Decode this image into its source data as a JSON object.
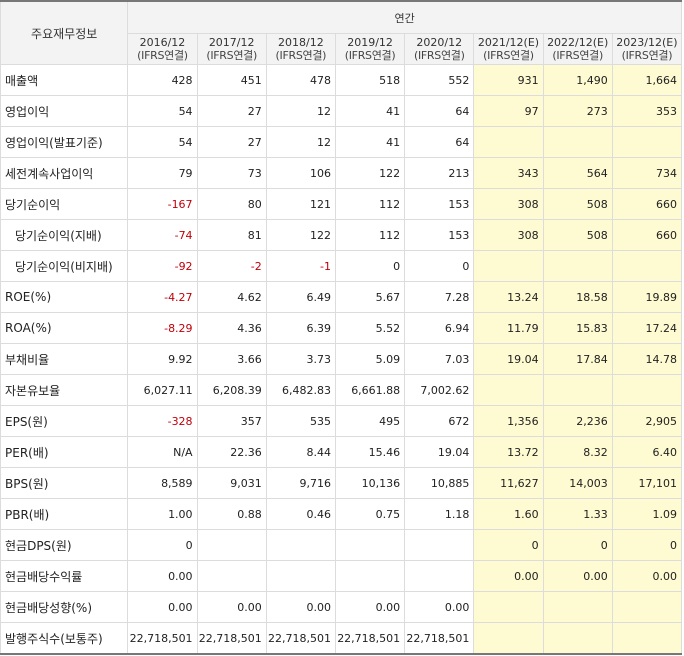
{
  "header": {
    "label_col": "주요재무정보",
    "group": "연간",
    "periods": [
      {
        "year": "2016/12",
        "basis": "(IFRS연결)",
        "estimate": false
      },
      {
        "year": "2017/12",
        "basis": "(IFRS연결)",
        "estimate": false
      },
      {
        "year": "2018/12",
        "basis": "(IFRS연결)",
        "estimate": false
      },
      {
        "year": "2019/12",
        "basis": "(IFRS연결)",
        "estimate": false
      },
      {
        "year": "2020/12",
        "basis": "(IFRS연결)",
        "estimate": false
      },
      {
        "year": "2021/12(E)",
        "basis": "(IFRS연결)",
        "estimate": true
      },
      {
        "year": "2022/12(E)",
        "basis": "(IFRS연결)",
        "estimate": true
      },
      {
        "year": "2023/12(E)",
        "basis": "(IFRS연결)",
        "estimate": true
      }
    ]
  },
  "rows": [
    {
      "label": "매출액",
      "indent": false,
      "values": [
        "428",
        "451",
        "478",
        "518",
        "552",
        "931",
        "1,490",
        "1,664"
      ]
    },
    {
      "label": "영업이익",
      "indent": false,
      "values": [
        "54",
        "27",
        "12",
        "41",
        "64",
        "97",
        "273",
        "353"
      ]
    },
    {
      "label": "영업이익(발표기준)",
      "indent": false,
      "values": [
        "54",
        "27",
        "12",
        "41",
        "64",
        "",
        "",
        ""
      ]
    },
    {
      "label": "세전계속사업이익",
      "indent": false,
      "values": [
        "79",
        "73",
        "106",
        "122",
        "213",
        "343",
        "564",
        "734"
      ]
    },
    {
      "label": "당기순이익",
      "indent": false,
      "values": [
        "-167",
        "80",
        "121",
        "112",
        "153",
        "308",
        "508",
        "660"
      ]
    },
    {
      "label": "당기순이익(지배)",
      "indent": true,
      "values": [
        "-74",
        "81",
        "122",
        "112",
        "153",
        "308",
        "508",
        "660"
      ]
    },
    {
      "label": "당기순이익(비지배)",
      "indent": true,
      "values": [
        "-92",
        "-2",
        "-1",
        "0",
        "0",
        "",
        "",
        ""
      ]
    },
    {
      "label": "ROE(%)",
      "indent": false,
      "values": [
        "-4.27",
        "4.62",
        "6.49",
        "5.67",
        "7.28",
        "13.24",
        "18.58",
        "19.89"
      ]
    },
    {
      "label": "ROA(%)",
      "indent": false,
      "values": [
        "-8.29",
        "4.36",
        "6.39",
        "5.52",
        "6.94",
        "11.79",
        "15.83",
        "17.24"
      ]
    },
    {
      "label": "부채비율",
      "indent": false,
      "values": [
        "9.92",
        "3.66",
        "3.73",
        "5.09",
        "7.03",
        "19.04",
        "17.84",
        "14.78"
      ]
    },
    {
      "label": "자본유보율",
      "indent": false,
      "values": [
        "6,027.11",
        "6,208.39",
        "6,482.83",
        "6,661.88",
        "7,002.62",
        "",
        "",
        ""
      ]
    },
    {
      "label": "EPS(원)",
      "indent": false,
      "values": [
        "-328",
        "357",
        "535",
        "495",
        "672",
        "1,356",
        "2,236",
        "2,905"
      ]
    },
    {
      "label": "PER(배)",
      "indent": false,
      "values": [
        "N/A",
        "22.36",
        "8.44",
        "15.46",
        "19.04",
        "13.72",
        "8.32",
        "6.40"
      ]
    },
    {
      "label": "BPS(원)",
      "indent": false,
      "values": [
        "8,589",
        "9,031",
        "9,716",
        "10,136",
        "10,885",
        "11,627",
        "14,003",
        "17,101"
      ]
    },
    {
      "label": "PBR(배)",
      "indent": false,
      "values": [
        "1.00",
        "0.88",
        "0.46",
        "0.75",
        "1.18",
        "1.60",
        "1.33",
        "1.09"
      ]
    },
    {
      "label": "현금DPS(원)",
      "indent": false,
      "values": [
        "0",
        "",
        "",
        "",
        "",
        "0",
        "0",
        "0"
      ]
    },
    {
      "label": "현금배당수익률",
      "indent": false,
      "values": [
        "0.00",
        "",
        "",
        "",
        "",
        "0.00",
        "0.00",
        "0.00"
      ]
    },
    {
      "label": "현금배당성향(%)",
      "indent": false,
      "values": [
        "0.00",
        "0.00",
        "0.00",
        "0.00",
        "0.00",
        "",
        "",
        ""
      ]
    },
    {
      "label": "발행주식수(보통주)",
      "indent": false,
      "values": [
        "22,718,501",
        "22,718,501",
        "22,718,501",
        "22,718,501",
        "22,718,501",
        "",
        "",
        ""
      ]
    }
  ]
}
